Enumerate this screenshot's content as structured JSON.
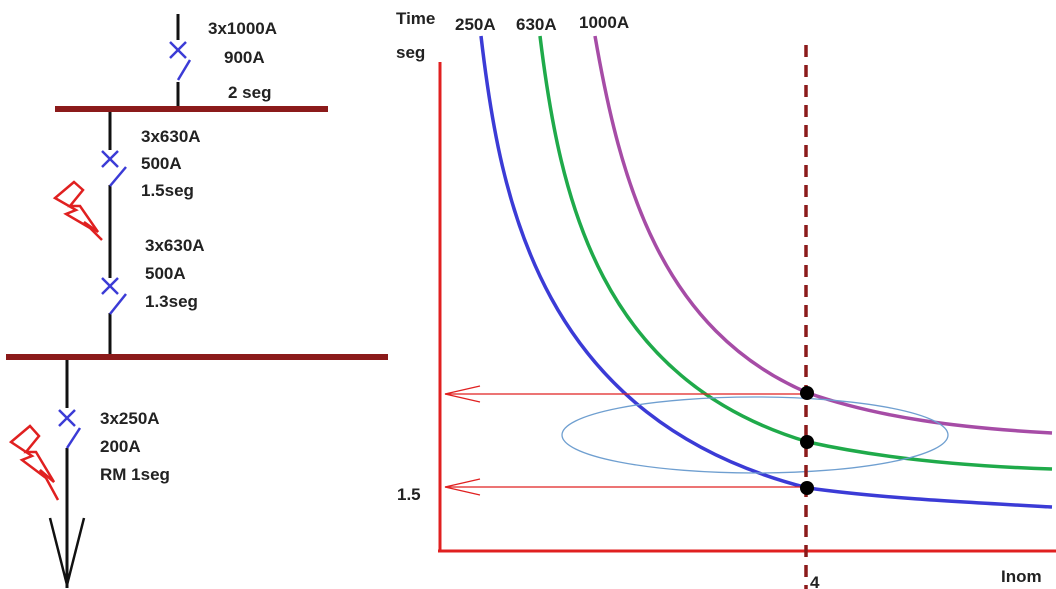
{
  "colors": {
    "bus": "#8b1a1a",
    "wire": "#111111",
    "breaker": "#3b3bd6",
    "fault": "#e02020",
    "axis": "#e02020",
    "curve_250": "#3b3bd6",
    "curve_630": "#1faa4a",
    "curve_1000": "#a64ca6",
    "dashed": "#8b1a1a",
    "ellipse": "#6f9fd0"
  },
  "diagram": {
    "breakers": [
      {
        "rating": "3x1000A",
        "setting": "900A",
        "delay": "2 seg"
      },
      {
        "rating": "3x630A",
        "setting": "500A",
        "delay": "1.5seg"
      },
      {
        "rating": "3x630A",
        "setting": "500A",
        "delay": "1.3seg"
      },
      {
        "rating": "3x250A",
        "setting": "200A",
        "delay": "RM 1seg"
      }
    ],
    "icons": [
      "breaker-icon",
      "fault-lightning-icon",
      "load-arrow-icon"
    ]
  },
  "chart_data": {
    "type": "line",
    "ylabel_line1": "Time",
    "ylabel_line2": "seg",
    "xlabel": "Inom",
    "y_tick": "1.5",
    "x_tick": "4",
    "series": [
      {
        "name": "250A"
      },
      {
        "name": "630A"
      },
      {
        "name": "1000A"
      }
    ]
  }
}
